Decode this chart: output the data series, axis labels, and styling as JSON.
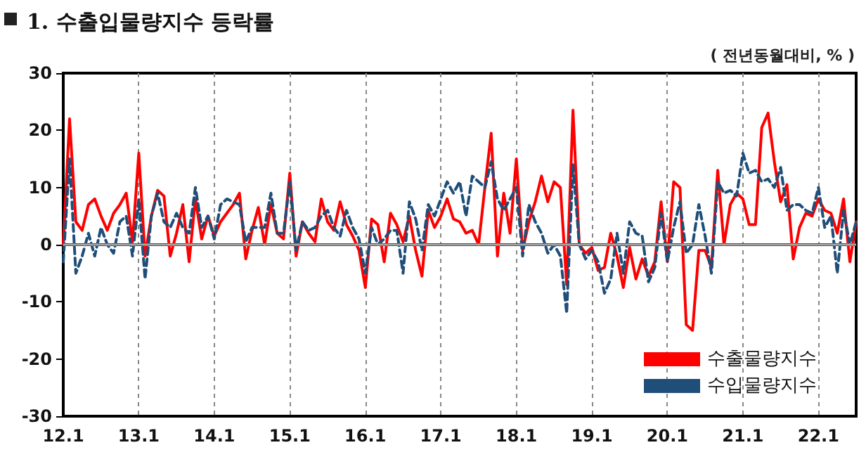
{
  "chart_data": {
    "type": "line",
    "title": "1. 수출입물량지수 등락률",
    "annotations": [
      "( 전년동월대비, % )"
    ],
    "categories": [
      "12.1",
      null,
      null,
      null,
      null,
      null,
      null,
      null,
      null,
      null,
      null,
      null,
      "13.1",
      null,
      null,
      null,
      null,
      null,
      null,
      null,
      null,
      null,
      null,
      null,
      "14.1",
      null,
      null,
      null,
      null,
      null,
      null,
      null,
      null,
      null,
      null,
      null,
      "15.1",
      null,
      null,
      null,
      null,
      null,
      null,
      null,
      null,
      null,
      null,
      null,
      "16.1",
      null,
      null,
      null,
      null,
      null,
      null,
      null,
      null,
      null,
      null,
      null,
      "17.1",
      null,
      null,
      null,
      null,
      null,
      null,
      null,
      null,
      null,
      null,
      null,
      "18.1",
      null,
      null,
      null,
      null,
      null,
      null,
      null,
      null,
      null,
      null,
      null,
      "19.1",
      null,
      null,
      null,
      null,
      null,
      null,
      null,
      null,
      null,
      null,
      null,
      "20.1",
      null,
      null,
      null,
      null,
      null,
      null,
      null,
      null,
      null,
      null,
      null,
      "21.1",
      null,
      null,
      null,
      null,
      null,
      null,
      null,
      null,
      null,
      null,
      null,
      "22.1",
      null,
      null,
      null,
      null,
      null,
      null
    ],
    "series": [
      {
        "name": "수출물량지수",
        "color": "#ff0000",
        "line_style": "solid",
        "values": [
          0,
          22,
          4,
          2.5,
          7,
          8,
          5,
          2.5,
          5.5,
          7,
          9,
          0.5,
          16,
          -2,
          5,
          9.5,
          8.5,
          -2,
          2,
          7,
          -3,
          8,
          1,
          5,
          1.5,
          4,
          5.5,
          7,
          9,
          -2.5,
          2.5,
          6.5,
          0,
          7,
          2,
          1,
          12.5,
          -2,
          4,
          2,
          0.5,
          8,
          4,
          2.5,
          7.5,
          3.5,
          1.5,
          -1,
          -7.5,
          4.5,
          3.5,
          -3,
          5.5,
          3.5,
          0.5,
          5,
          -1,
          -5.5,
          6,
          3,
          5,
          8,
          4.5,
          4,
          2,
          2.5,
          0,
          10,
          19.5,
          -2,
          9,
          2,
          15,
          -1,
          4,
          7.5,
          12,
          7.5,
          11,
          10,
          -7,
          23.5,
          0,
          -1.5,
          -0.5,
          -4.5,
          -4,
          2,
          -2,
          -7.5,
          -0.5,
          -6,
          -2.5,
          -5.5,
          -3,
          7.5,
          -3,
          11,
          10,
          -14,
          -15,
          -1,
          -1,
          -4,
          13,
          0,
          7,
          9,
          8,
          3.5,
          3.5,
          20.5,
          23,
          14.5,
          7.5,
          10.5,
          -2.5,
          3,
          5.5,
          5,
          8,
          6,
          5.5,
          2,
          8,
          -3,
          4
        ]
      },
      {
        "name": "수입물량지수",
        "color": "#1f4e79",
        "line_style": "dashed",
        "values": [
          -3,
          15,
          -5,
          -2,
          2,
          -2,
          3,
          0,
          -1.5,
          4,
          5,
          -2,
          8,
          -6,
          5,
          9,
          4,
          3,
          5.5,
          3,
          2,
          10,
          3,
          5,
          1,
          7,
          8,
          7.5,
          7,
          0.5,
          3,
          3,
          3,
          9,
          2,
          2,
          11,
          -1,
          4,
          2.5,
          3,
          5,
          6,
          3,
          1.5,
          6,
          3,
          1,
          -5,
          3,
          0,
          1,
          2.5,
          2.5,
          -5,
          7.5,
          4.5,
          -1,
          7,
          5,
          8,
          11,
          9,
          11,
          5,
          12,
          11,
          10,
          14.5,
          8,
          6,
          8,
          10,
          -2,
          7,
          4,
          2,
          -1.5,
          0,
          -2,
          -12,
          14,
          0,
          -2.5,
          -1,
          -3,
          -8.5,
          -6,
          2,
          -5,
          4,
          2,
          1.5,
          -6.5,
          -4,
          5.5,
          -3,
          3,
          7.5,
          -1.5,
          0,
          7,
          1.5,
          -5,
          11,
          9,
          9.5,
          8.5,
          16,
          12.5,
          13,
          11,
          11.5,
          10,
          13.5,
          6,
          7,
          7,
          6,
          5.5,
          10,
          3,
          5,
          -5,
          6,
          0,
          4
        ]
      }
    ],
    "ylim": [
      -30,
      30
    ],
    "yticks": [
      -30,
      -20,
      -10,
      0,
      10,
      20,
      30
    ],
    "grid": "x",
    "legend": "bottom right",
    "marker": "none",
    "ref_lines": [
      {
        "axis": "y",
        "value": 0,
        "color": "#a6a6a6"
      }
    ]
  }
}
